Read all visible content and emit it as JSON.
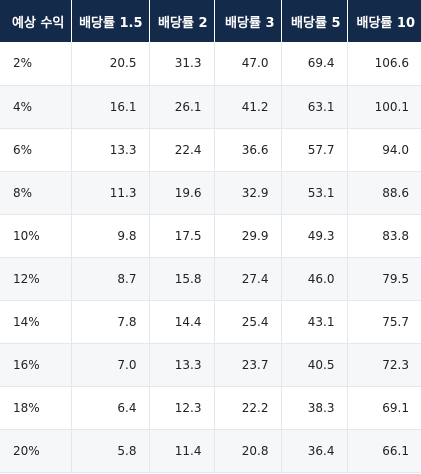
{
  "table": {
    "headers": [
      "예상 수익",
      "배당률 1.5",
      "배당률 2",
      "배당률 3",
      "배당률 5",
      "배당률 10"
    ],
    "rows": [
      [
        "2%",
        "20.5",
        "31.3",
        "47.0",
        "69.4",
        "106.6"
      ],
      [
        "4%",
        "16.1",
        "26.1",
        "41.2",
        "63.1",
        "100.1"
      ],
      [
        "6%",
        "13.3",
        "22.4",
        "36.6",
        "57.7",
        "94.0"
      ],
      [
        "8%",
        "11.3",
        "19.6",
        "32.9",
        "53.1",
        "88.6"
      ],
      [
        "10%",
        "9.8",
        "17.5",
        "29.9",
        "49.3",
        "83.8"
      ],
      [
        "12%",
        "8.7",
        "15.8",
        "27.4",
        "46.0",
        "79.5"
      ],
      [
        "14%",
        "7.8",
        "14.4",
        "25.4",
        "43.1",
        "75.7"
      ],
      [
        "16%",
        "7.0",
        "13.3",
        "23.7",
        "40.5",
        "72.3"
      ],
      [
        "18%",
        "6.4",
        "12.3",
        "22.2",
        "38.3",
        "69.1"
      ],
      [
        "20%",
        "5.8",
        "11.4",
        "20.8",
        "36.4",
        "66.1"
      ]
    ]
  },
  "colors": {
    "header_bg": "#142a4a",
    "header_text": "#ffffff",
    "stripe_bg": "#f6f7f9",
    "grid_line": "#e4e7ec"
  }
}
